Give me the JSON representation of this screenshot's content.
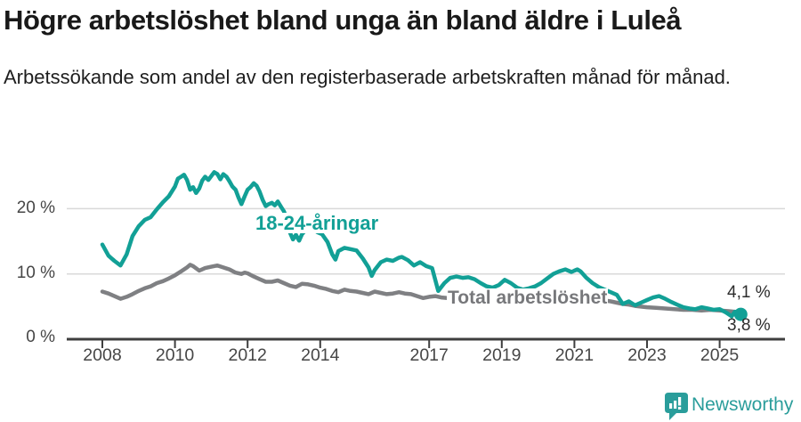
{
  "header": {
    "title": "Högre arbetslöshet bland unga än bland äldre i Luleå",
    "subtitle": "Arbetssökande som andel av den registerbaserade arbetskraften månad för månad."
  },
  "chart_data": {
    "type": "line",
    "title": "Högre arbetslöshet bland unga än bland äldre i Luleå",
    "xlabel": "",
    "ylabel": "",
    "grid": "horizontal",
    "legend_position": "inline-labels",
    "ylim": [
      0,
      27
    ],
    "x_range": [
      2008.0,
      2025.58
    ],
    "x_ticks": [
      "2008",
      "2010",
      "2012",
      "2014",
      "2017",
      "2019",
      "2021",
      "2023",
      "2025"
    ],
    "x_tick_years": [
      2008,
      2010,
      2012,
      2014,
      2017,
      2019,
      2021,
      2023,
      2025
    ],
    "y_ticks": [
      {
        "value": 0,
        "label": "0 %"
      },
      {
        "value": 10,
        "label": "10 %"
      },
      {
        "value": 20,
        "label": "20 %"
      }
    ],
    "series": [
      {
        "name": "Total arbetslöshet",
        "color": "#7f8083",
        "end_label": "4,1 %",
        "end_dot": false,
        "points": [
          [
            2008.0,
            7.3
          ],
          [
            2008.17,
            7.0
          ],
          [
            2008.33,
            6.6
          ],
          [
            2008.5,
            6.2
          ],
          [
            2008.67,
            6.5
          ],
          [
            2008.83,
            6.9
          ],
          [
            2009.0,
            7.4
          ],
          [
            2009.17,
            7.8
          ],
          [
            2009.33,
            8.1
          ],
          [
            2009.5,
            8.6
          ],
          [
            2009.67,
            8.9
          ],
          [
            2009.83,
            9.3
          ],
          [
            2010.0,
            9.8
          ],
          [
            2010.17,
            10.4
          ],
          [
            2010.33,
            11.0
          ],
          [
            2010.42,
            11.4
          ],
          [
            2010.5,
            11.2
          ],
          [
            2010.67,
            10.5
          ],
          [
            2010.83,
            10.9
          ],
          [
            2011.0,
            11.1
          ],
          [
            2011.17,
            11.3
          ],
          [
            2011.33,
            11.0
          ],
          [
            2011.5,
            10.7
          ],
          [
            2011.67,
            10.2
          ],
          [
            2011.83,
            10.0
          ],
          [
            2011.92,
            10.2
          ],
          [
            2012.0,
            10.1
          ],
          [
            2012.17,
            9.6
          ],
          [
            2012.33,
            9.2
          ],
          [
            2012.5,
            8.8
          ],
          [
            2012.67,
            8.8
          ],
          [
            2012.83,
            9.0
          ],
          [
            2013.0,
            8.6
          ],
          [
            2013.17,
            8.2
          ],
          [
            2013.33,
            8.0
          ],
          [
            2013.5,
            8.5
          ],
          [
            2013.67,
            8.4
          ],
          [
            2013.83,
            8.2
          ],
          [
            2014.0,
            7.9
          ],
          [
            2014.17,
            7.7
          ],
          [
            2014.33,
            7.4
          ],
          [
            2014.5,
            7.2
          ],
          [
            2014.67,
            7.6
          ],
          [
            2014.83,
            7.4
          ],
          [
            2015.0,
            7.3
          ],
          [
            2015.17,
            7.1
          ],
          [
            2015.33,
            6.9
          ],
          [
            2015.5,
            7.3
          ],
          [
            2015.67,
            7.1
          ],
          [
            2015.83,
            6.9
          ],
          [
            2016.0,
            7.0
          ],
          [
            2016.17,
            7.2
          ],
          [
            2016.33,
            7.0
          ],
          [
            2016.5,
            6.9
          ],
          [
            2016.67,
            6.6
          ],
          [
            2016.83,
            6.3
          ],
          [
            2017.0,
            6.5
          ],
          [
            2017.17,
            6.6
          ],
          [
            2017.33,
            6.4
          ],
          [
            2017.5,
            6.3
          ],
          [
            2017.67,
            6.2
          ],
          [
            2017.83,
            6.1
          ],
          [
            2018.0,
            6.0
          ],
          [
            2018.25,
            5.9
          ],
          [
            2018.5,
            5.8
          ],
          [
            2018.75,
            5.7
          ],
          [
            2019.0,
            5.7
          ],
          [
            2019.25,
            5.6
          ],
          [
            2019.5,
            5.6
          ],
          [
            2019.75,
            5.8
          ],
          [
            2020.0,
            6.2
          ],
          [
            2020.25,
            6.9
          ],
          [
            2020.5,
            7.3
          ],
          [
            2020.75,
            7.4
          ],
          [
            2021.0,
            7.2
          ],
          [
            2021.25,
            6.8
          ],
          [
            2021.5,
            6.4
          ],
          [
            2021.75,
            6.0
          ],
          [
            2022.0,
            5.8
          ],
          [
            2022.17,
            5.6
          ],
          [
            2022.33,
            5.4
          ],
          [
            2022.5,
            5.3
          ],
          [
            2022.67,
            5.1
          ],
          [
            2022.83,
            5.0
          ],
          [
            2023.0,
            4.9
          ],
          [
            2023.25,
            4.8
          ],
          [
            2023.5,
            4.7
          ],
          [
            2023.75,
            4.6
          ],
          [
            2024.0,
            4.5
          ],
          [
            2024.25,
            4.5
          ],
          [
            2024.5,
            4.4
          ],
          [
            2024.75,
            4.5
          ],
          [
            2025.0,
            4.4
          ],
          [
            2025.25,
            4.3
          ],
          [
            2025.58,
            4.1
          ]
        ]
      },
      {
        "name": "18-24-åringar",
        "color": "#12a096",
        "end_label": "3,8 %",
        "end_dot": true,
        "points": [
          [
            2008.0,
            14.5
          ],
          [
            2008.17,
            12.8
          ],
          [
            2008.33,
            12.0
          ],
          [
            2008.5,
            11.3
          ],
          [
            2008.67,
            13.0
          ],
          [
            2008.83,
            15.8
          ],
          [
            2009.0,
            17.3
          ],
          [
            2009.17,
            18.3
          ],
          [
            2009.33,
            18.7
          ],
          [
            2009.5,
            19.9
          ],
          [
            2009.67,
            21.0
          ],
          [
            2009.83,
            21.9
          ],
          [
            2010.0,
            23.4
          ],
          [
            2010.08,
            24.6
          ],
          [
            2010.17,
            24.9
          ],
          [
            2010.25,
            25.2
          ],
          [
            2010.33,
            24.4
          ],
          [
            2010.42,
            22.9
          ],
          [
            2010.5,
            23.3
          ],
          [
            2010.58,
            22.4
          ],
          [
            2010.67,
            23.1
          ],
          [
            2010.75,
            24.3
          ],
          [
            2010.83,
            24.9
          ],
          [
            2010.92,
            24.4
          ],
          [
            2011.0,
            25.0
          ],
          [
            2011.08,
            25.6
          ],
          [
            2011.17,
            25.3
          ],
          [
            2011.25,
            24.5
          ],
          [
            2011.33,
            25.3
          ],
          [
            2011.42,
            24.9
          ],
          [
            2011.5,
            24.2
          ],
          [
            2011.58,
            23.4
          ],
          [
            2011.67,
            22.9
          ],
          [
            2011.75,
            21.7
          ],
          [
            2011.83,
            20.7
          ],
          [
            2011.92,
            21.9
          ],
          [
            2012.0,
            22.9
          ],
          [
            2012.08,
            23.3
          ],
          [
            2012.17,
            23.9
          ],
          [
            2012.25,
            23.5
          ],
          [
            2012.33,
            22.6
          ],
          [
            2012.42,
            21.3
          ],
          [
            2012.5,
            20.4
          ],
          [
            2012.58,
            20.7
          ],
          [
            2012.67,
            20.9
          ],
          [
            2012.75,
            20.5
          ],
          [
            2012.83,
            21.1
          ],
          [
            2012.92,
            20.3
          ],
          [
            2013.0,
            19.6
          ],
          [
            2013.08,
            18.4
          ],
          [
            2013.17,
            16.3
          ],
          [
            2013.25,
            15.3
          ],
          [
            2013.33,
            16.0
          ],
          [
            2013.42,
            15.1
          ],
          [
            2013.5,
            16.1
          ],
          [
            2013.58,
            16.6
          ],
          [
            2013.67,
            16.9
          ],
          [
            2013.75,
            17.1
          ],
          [
            2013.83,
            16.8
          ],
          [
            2013.92,
            16.4
          ],
          [
            2014.05,
            16.1
          ],
          [
            2014.2,
            14.9
          ],
          [
            2014.33,
            13.0
          ],
          [
            2014.42,
            12.2
          ],
          [
            2014.5,
            13.5
          ],
          [
            2014.67,
            14.0
          ],
          [
            2014.83,
            13.8
          ],
          [
            2015.0,
            13.6
          ],
          [
            2015.17,
            12.4
          ],
          [
            2015.33,
            11.0
          ],
          [
            2015.42,
            9.7
          ],
          [
            2015.5,
            10.6
          ],
          [
            2015.67,
            11.8
          ],
          [
            2015.83,
            12.2
          ],
          [
            2016.0,
            12.0
          ],
          [
            2016.17,
            12.5
          ],
          [
            2016.25,
            12.6
          ],
          [
            2016.42,
            12.1
          ],
          [
            2016.58,
            11.3
          ],
          [
            2016.75,
            11.8
          ],
          [
            2016.92,
            11.2
          ],
          [
            2017.08,
            10.9
          ],
          [
            2017.25,
            7.4
          ],
          [
            2017.42,
            8.6
          ],
          [
            2017.58,
            9.4
          ],
          [
            2017.75,
            9.6
          ],
          [
            2017.92,
            9.4
          ],
          [
            2018.08,
            9.5
          ],
          [
            2018.25,
            9.2
          ],
          [
            2018.42,
            8.6
          ],
          [
            2018.58,
            8.1
          ],
          [
            2018.75,
            7.9
          ],
          [
            2018.92,
            8.3
          ],
          [
            2019.08,
            9.1
          ],
          [
            2019.25,
            8.6
          ],
          [
            2019.42,
            7.9
          ],
          [
            2019.58,
            7.6
          ],
          [
            2019.75,
            7.8
          ],
          [
            2019.92,
            8.1
          ],
          [
            2020.08,
            8.6
          ],
          [
            2020.25,
            9.3
          ],
          [
            2020.42,
            10.0
          ],
          [
            2020.58,
            10.4
          ],
          [
            2020.75,
            10.7
          ],
          [
            2020.92,
            10.3
          ],
          [
            2021.0,
            10.5
          ],
          [
            2021.08,
            10.7
          ],
          [
            2021.17,
            10.4
          ],
          [
            2021.33,
            9.4
          ],
          [
            2021.5,
            8.6
          ],
          [
            2021.67,
            8.0
          ],
          [
            2021.83,
            7.6
          ],
          [
            2022.0,
            7.2
          ],
          [
            2022.17,
            6.8
          ],
          [
            2022.33,
            5.4
          ],
          [
            2022.5,
            5.8
          ],
          [
            2022.67,
            5.2
          ],
          [
            2022.83,
            5.6
          ],
          [
            2023.0,
            6.0
          ],
          [
            2023.17,
            6.4
          ],
          [
            2023.33,
            6.6
          ],
          [
            2023.5,
            6.2
          ],
          [
            2023.67,
            5.7
          ],
          [
            2023.83,
            5.3
          ],
          [
            2024.0,
            4.9
          ],
          [
            2024.17,
            4.7
          ],
          [
            2024.33,
            4.6
          ],
          [
            2024.5,
            4.9
          ],
          [
            2024.67,
            4.7
          ],
          [
            2024.83,
            4.5
          ],
          [
            2025.0,
            4.6
          ],
          [
            2025.17,
            4.1
          ],
          [
            2025.33,
            3.5
          ],
          [
            2025.42,
            4.2
          ],
          [
            2025.58,
            3.8
          ]
        ]
      }
    ]
  },
  "colors": {
    "accent_teal": "#12a096",
    "series_gray": "#7f8083",
    "grid": "#d9d9d9",
    "axis": "#3f3f3f",
    "logo_teal": "#2a9d9b"
  },
  "footer": {
    "brand": "Newsworthy"
  }
}
